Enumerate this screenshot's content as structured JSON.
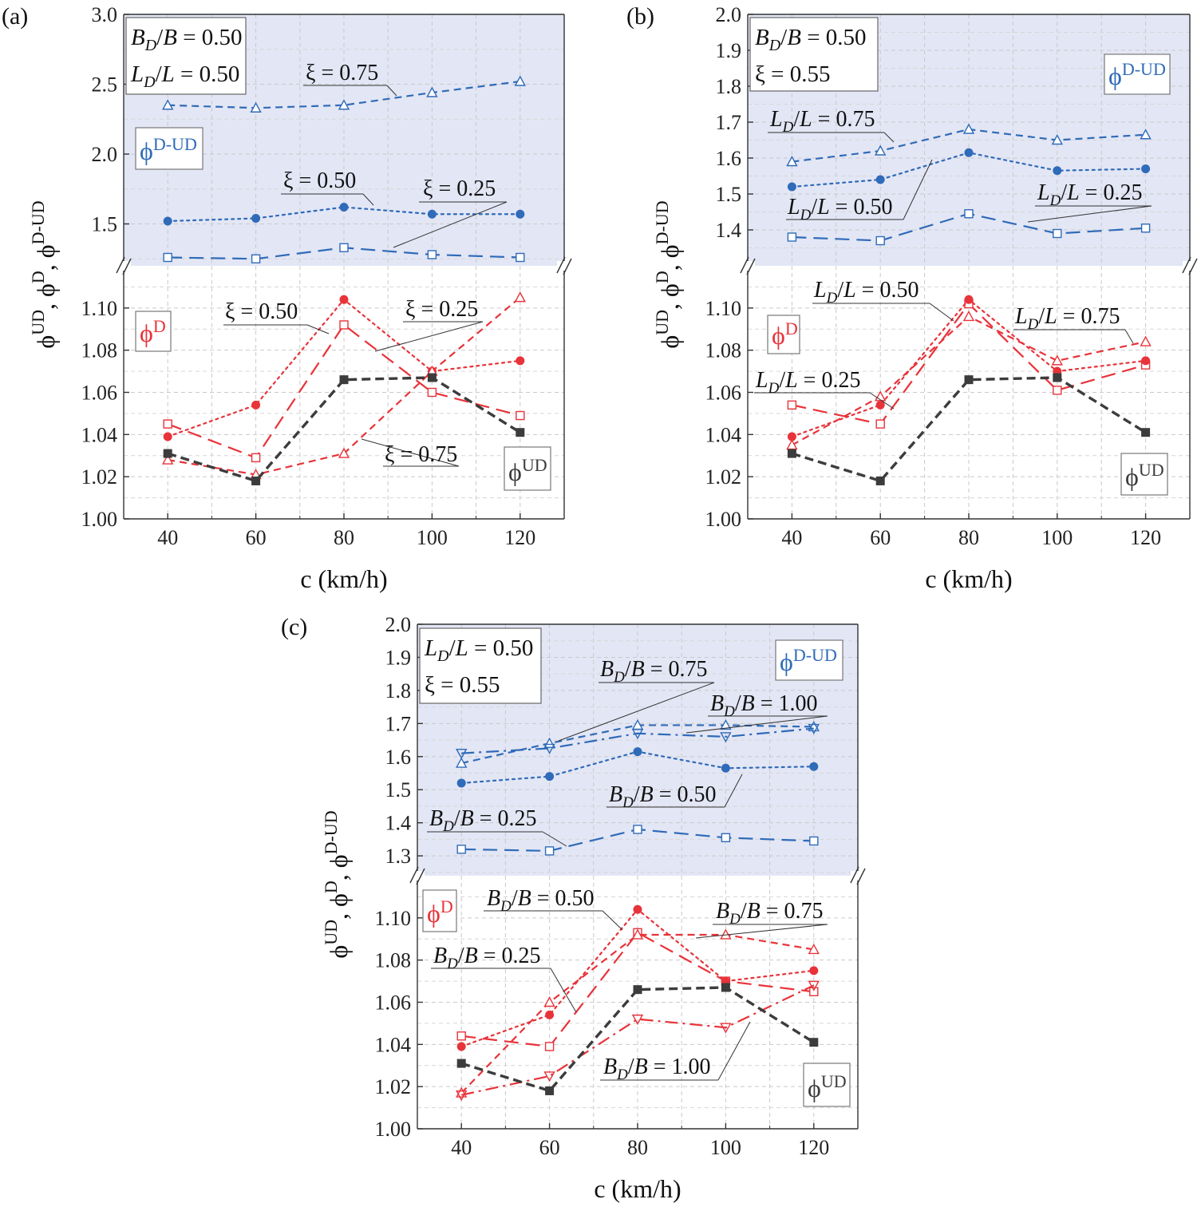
{
  "colors": {
    "blue": "#2f6bb8",
    "red": "#e8333a",
    "dark": "#3c3c3c",
    "shade": "#e3e6f5"
  },
  "chart_data": [
    {
      "type": "line",
      "panel_label": "(a)",
      "xlabel": "c (km/h)",
      "ylabel": "ϕUD, ϕD, ϕD-UD",
      "x": [
        40,
        60,
        80,
        100,
        120
      ],
      "x_ticks": [
        "40",
        "60",
        "80",
        "100",
        "120"
      ],
      "upper_axis": {
        "ylim": [
          1.2,
          3.0
        ],
        "ticks": [
          "1.5",
          "2.0",
          "2.5",
          "3.0"
        ]
      },
      "lower_axis": {
        "ylim": [
          1.0,
          1.12
        ],
        "ticks": [
          "1.00",
          "1.02",
          "1.04",
          "1.06",
          "1.08",
          "1.10"
        ]
      },
      "param_box": [
        "BD/B = 0.50",
        "LD/L = 0.50"
      ],
      "region_labels": {
        "upper": "ϕD-UD",
        "lower_red": "ϕD",
        "lower_dark": "ϕUD"
      },
      "series": [
        {
          "name": "ξ = 0.25",
          "group": "D-UD",
          "color": "blue",
          "dash": "long",
          "marker": "square-open",
          "values": [
            1.26,
            1.25,
            1.33,
            1.28,
            1.26
          ]
        },
        {
          "name": "ξ = 0.50",
          "group": "D-UD",
          "color": "blue",
          "dash": "dot",
          "marker": "circle-filled",
          "values": [
            1.52,
            1.54,
            1.62,
            1.57,
            1.57
          ]
        },
        {
          "name": "ξ = 0.75",
          "group": "D-UD",
          "color": "blue",
          "dash": "short",
          "marker": "triangle-open",
          "values": [
            2.35,
            2.33,
            2.35,
            2.44,
            2.52
          ]
        },
        {
          "name": "ξ = 0.25",
          "group": "D",
          "color": "red",
          "dash": "long",
          "marker": "square-open",
          "values": [
            1.045,
            1.029,
            1.092,
            1.06,
            1.049
          ]
        },
        {
          "name": "ξ = 0.50",
          "group": "D",
          "color": "red",
          "dash": "dot",
          "marker": "circle-filled",
          "values": [
            1.039,
            1.054,
            1.104,
            1.07,
            1.075
          ]
        },
        {
          "name": "ξ = 0.75",
          "group": "D",
          "color": "red",
          "dash": "short",
          "marker": "triangle-open",
          "values": [
            1.028,
            1.021,
            1.031,
            1.07,
            1.105
          ]
        },
        {
          "name": "ϕUD",
          "group": "UD",
          "color": "dark",
          "dash": "thick",
          "marker": "square-filled",
          "values": [
            1.031,
            1.018,
            1.066,
            1.067,
            1.041
          ]
        }
      ],
      "annotations": [
        {
          "text": "ξ = 0.75",
          "axis": "upper"
        },
        {
          "text": "ξ = 0.50",
          "axis": "upper"
        },
        {
          "text": "ξ = 0.25",
          "axis": "upper"
        },
        {
          "text": "ξ = 0.50",
          "axis": "lower"
        },
        {
          "text": "ξ = 0.25",
          "axis": "lower"
        },
        {
          "text": "ξ = 0.75",
          "axis": "lower"
        }
      ]
    },
    {
      "type": "line",
      "panel_label": "(b)",
      "xlabel": "c (km/h)",
      "ylabel": "ϕUD, ϕD, ϕD-UD",
      "x": [
        40,
        60,
        80,
        100,
        120
      ],
      "x_ticks": [
        "40",
        "60",
        "80",
        "100",
        "120"
      ],
      "upper_axis": {
        "ylim": [
          1.3,
          2.0
        ],
        "ticks": [
          "1.4",
          "1.5",
          "1.6",
          "1.7",
          "1.8",
          "1.9",
          "2.0"
        ]
      },
      "lower_axis": {
        "ylim": [
          1.0,
          1.12
        ],
        "ticks": [
          "1.00",
          "1.02",
          "1.04",
          "1.06",
          "1.08",
          "1.10"
        ]
      },
      "param_box": [
        "BD/B = 0.50",
        "ξ = 0.55"
      ],
      "region_labels": {
        "upper": "ϕD-UD",
        "lower_red": "ϕD",
        "lower_dark": "ϕUD"
      },
      "series": [
        {
          "name": "LD/L = 0.25",
          "group": "D-UD",
          "color": "blue",
          "dash": "long",
          "marker": "square-open",
          "values": [
            1.38,
            1.37,
            1.445,
            1.39,
            1.405
          ]
        },
        {
          "name": "LD/L = 0.50",
          "group": "D-UD",
          "color": "blue",
          "dash": "dot",
          "marker": "circle-filled",
          "values": [
            1.52,
            1.54,
            1.615,
            1.565,
            1.57
          ]
        },
        {
          "name": "LD/L = 0.75",
          "group": "D-UD",
          "color": "blue",
          "dash": "short",
          "marker": "triangle-open",
          "values": [
            1.59,
            1.62,
            1.68,
            1.65,
            1.665
          ]
        },
        {
          "name": "LD/L = 0.25",
          "group": "D",
          "color": "red",
          "dash": "long",
          "marker": "square-open",
          "values": [
            1.054,
            1.045,
            1.102,
            1.061,
            1.073
          ]
        },
        {
          "name": "LD/L = 0.50",
          "group": "D",
          "color": "red",
          "dash": "dot",
          "marker": "circle-filled",
          "values": [
            1.039,
            1.054,
            1.104,
            1.07,
            1.075
          ]
        },
        {
          "name": "LD/L = 0.75",
          "group": "D",
          "color": "red",
          "dash": "short",
          "marker": "triangle-open",
          "values": [
            1.035,
            1.058,
            1.096,
            1.075,
            1.084
          ]
        },
        {
          "name": "ϕUD",
          "group": "UD",
          "color": "dark",
          "dash": "thick",
          "marker": "square-filled",
          "values": [
            1.031,
            1.018,
            1.066,
            1.067,
            1.041
          ]
        }
      ],
      "annotations": [
        {
          "text": "LD/L = 0.75",
          "axis": "upper"
        },
        {
          "text": "LD/L = 0.50",
          "axis": "upper"
        },
        {
          "text": "LD/L = 0.25",
          "axis": "upper"
        },
        {
          "text": "LD/L = 0.50",
          "axis": "lower"
        },
        {
          "text": "LD/L = 0.75",
          "axis": "lower"
        },
        {
          "text": "LD/L = 0.25",
          "axis": "lower"
        }
      ]
    },
    {
      "type": "line",
      "panel_label": "(c)",
      "xlabel": "c (km/h)",
      "ylabel": "ϕUD, ϕD, ϕD-UD",
      "x": [
        40,
        60,
        80,
        100,
        120
      ],
      "x_ticks": [
        "40",
        "60",
        "80",
        "100",
        "120"
      ],
      "upper_axis": {
        "ylim": [
          1.24,
          2.0
        ],
        "ticks": [
          "1.3",
          "1.4",
          "1.5",
          "1.6",
          "1.7",
          "1.8",
          "1.9",
          "2.0"
        ]
      },
      "lower_axis": {
        "ylim": [
          1.0,
          1.12
        ],
        "ticks": [
          "1.00",
          "1.02",
          "1.04",
          "1.06",
          "1.08",
          "1.10"
        ]
      },
      "param_box": [
        "LD/L = 0.50",
        "ξ = 0.55"
      ],
      "region_labels": {
        "upper": "ϕD-UD",
        "lower_red": "ϕD",
        "lower_dark": "ϕUD"
      },
      "series": [
        {
          "name": "BD/B = 0.25",
          "group": "D-UD",
          "color": "blue",
          "dash": "long",
          "marker": "square-open",
          "values": [
            1.32,
            1.315,
            1.38,
            1.355,
            1.345
          ]
        },
        {
          "name": "BD/B = 0.50",
          "group": "D-UD",
          "color": "blue",
          "dash": "dot",
          "marker": "circle-filled",
          "values": [
            1.52,
            1.54,
            1.615,
            1.565,
            1.57
          ]
        },
        {
          "name": "BD/B = 0.75",
          "group": "D-UD",
          "color": "blue",
          "dash": "short",
          "marker": "triangle-open",
          "values": [
            1.58,
            1.64,
            1.695,
            1.695,
            1.69
          ]
        },
        {
          "name": "BD/B = 1.00",
          "group": "D-UD",
          "color": "blue",
          "dash": "dashdot",
          "marker": "triangle-down-open",
          "values": [
            1.61,
            1.625,
            1.67,
            1.66,
            1.685
          ]
        },
        {
          "name": "BD/B = 0.25",
          "group": "D",
          "color": "red",
          "dash": "long",
          "marker": "square-open",
          "values": [
            1.044,
            1.039,
            1.093,
            1.07,
            1.065
          ]
        },
        {
          "name": "BD/B = 0.50",
          "group": "D",
          "color": "red",
          "dash": "dot",
          "marker": "circle-filled",
          "values": [
            1.039,
            1.054,
            1.104,
            1.07,
            1.075
          ]
        },
        {
          "name": "BD/B = 0.75",
          "group": "D",
          "color": "red",
          "dash": "short",
          "marker": "triangle-open",
          "values": [
            1.017,
            1.06,
            1.092,
            1.092,
            1.085
          ]
        },
        {
          "name": "BD/B = 1.00",
          "group": "D",
          "color": "red",
          "dash": "dashdot",
          "marker": "triangle-down-open",
          "values": [
            1.016,
            1.025,
            1.052,
            1.048,
            1.068
          ]
        },
        {
          "name": "ϕUD",
          "group": "UD",
          "color": "dark",
          "dash": "thick",
          "marker": "square-filled",
          "values": [
            1.031,
            1.018,
            1.066,
            1.067,
            1.041
          ]
        }
      ],
      "annotations": [
        {
          "text": "BD/B = 0.75",
          "axis": "upper"
        },
        {
          "text": "BD/B = 1.00",
          "axis": "upper"
        },
        {
          "text": "BD/B = 0.50",
          "axis": "upper"
        },
        {
          "text": "BD/B = 0.25",
          "axis": "upper"
        },
        {
          "text": "BD/B = 0.50",
          "axis": "lower"
        },
        {
          "text": "BD/B = 0.75",
          "axis": "lower"
        },
        {
          "text": "BD/B = 0.25",
          "axis": "lower"
        },
        {
          "text": "BD/B = 1.00",
          "axis": "lower"
        }
      ]
    }
  ]
}
